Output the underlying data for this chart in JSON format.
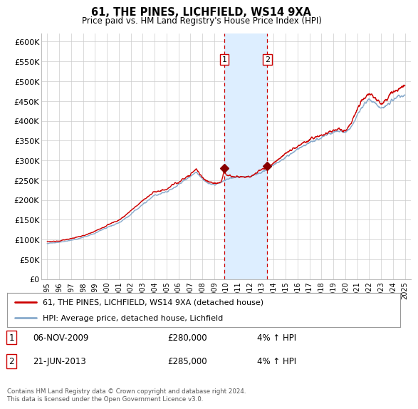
{
  "title": "61, THE PINES, LICHFIELD, WS14 9XA",
  "subtitle": "Price paid vs. HM Land Registry's House Price Index (HPI)",
  "footer": "Contains HM Land Registry data © Crown copyright and database right 2024.\nThis data is licensed under the Open Government Licence v3.0.",
  "legend_entries": [
    "61, THE PINES, LICHFIELD, WS14 9XA (detached house)",
    "HPI: Average price, detached house, Lichfield"
  ],
  "transaction1": {
    "label": "1",
    "date": "06-NOV-2009",
    "price": "£280,000",
    "hpi": "4% ↑ HPI"
  },
  "transaction2": {
    "label": "2",
    "date": "21-JUN-2013",
    "price": "£285,000",
    "hpi": "4% ↑ HPI"
  },
  "vline1_x": 2009.846,
  "vline2_x": 2013.463,
  "shaded_region": [
    2009.846,
    2013.463
  ],
  "ylim": [
    0,
    620000
  ],
  "yticks": [
    0,
    50000,
    100000,
    150000,
    200000,
    250000,
    300000,
    350000,
    400000,
    450000,
    500000,
    550000,
    600000
  ],
  "xlim": [
    1994.5,
    2025.5
  ],
  "xticks": [
    1995,
    1996,
    1997,
    1998,
    1999,
    2000,
    2001,
    2002,
    2003,
    2004,
    2005,
    2006,
    2007,
    2008,
    2009,
    2010,
    2011,
    2012,
    2013,
    2014,
    2015,
    2016,
    2017,
    2018,
    2019,
    2020,
    2021,
    2022,
    2023,
    2024,
    2025
  ],
  "property_color": "#cc0000",
  "hpi_color": "#88aacc",
  "vline_color": "#cc0000",
  "shade_color": "#ddeeff",
  "marker_color": "#880000",
  "background_color": "#ffffff",
  "grid_color": "#cccccc"
}
